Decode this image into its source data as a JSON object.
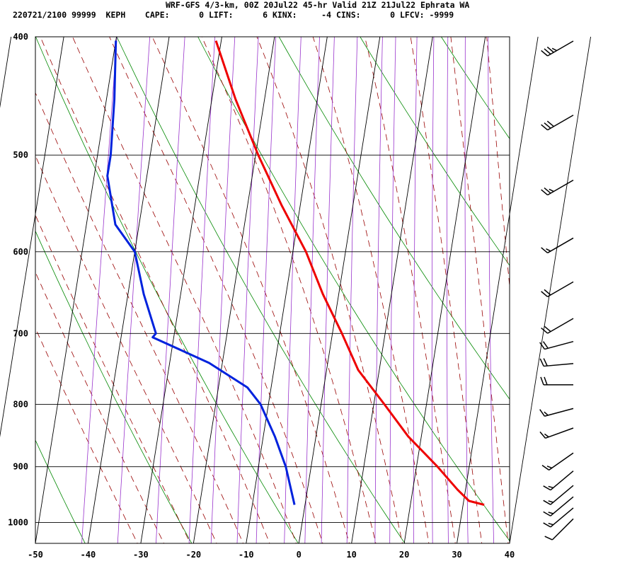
{
  "header": {
    "line1": "WRF-GFS 4/3-km, 00Z 20Jul22 45-hr Valid 21Z 21Jul22 Ephrata WA",
    "line2": "220721/2100 99999  KEPH    CAPE:      0 LIFT:      6 KINX:     -4 CINS:      0 LFCV: -9999"
  },
  "chart_data": {
    "type": "line",
    "subtype": "skew-T log-P sounding",
    "x_axis": {
      "unit": "°C",
      "range": [
        -50,
        40
      ],
      "ticks": [
        -50,
        -40,
        -30,
        -20,
        -10,
        0,
        10,
        20,
        30,
        40
      ]
    },
    "y_axis": {
      "unit": "hPa",
      "scale": "log",
      "range": [
        1040,
        400
      ],
      "ticks": [
        400,
        500,
        600,
        700,
        800,
        900,
        1000
      ]
    },
    "grid": true,
    "series": [
      {
        "kind": "temperature",
        "color": "#ee0000",
        "points": [
          {
            "p": 403,
            "t": -31
          },
          {
            "p": 450,
            "t": -25.5
          },
          {
            "p": 500,
            "t": -19.5
          },
          {
            "p": 550,
            "t": -13.5
          },
          {
            "p": 600,
            "t": -7.5
          },
          {
            "p": 650,
            "t": -3
          },
          {
            "p": 700,
            "t": 1.8
          },
          {
            "p": 750,
            "t": 6
          },
          {
            "p": 800,
            "t": 12
          },
          {
            "p": 850,
            "t": 17.5
          },
          {
            "p": 900,
            "t": 24
          },
          {
            "p": 940,
            "t": 28.5
          },
          {
            "p": 960,
            "t": 31
          },
          {
            "p": 967,
            "t": 34
          }
        ]
      },
      {
        "kind": "dewpoint",
        "color": "#0022dd",
        "points": [
          {
            "p": 403,
            "t": -50
          },
          {
            "p": 450,
            "t": -48.5
          },
          {
            "p": 500,
            "t": -47.5
          },
          {
            "p": 520,
            "t": -47.5
          },
          {
            "p": 570,
            "t": -44.5
          },
          {
            "p": 600,
            "t": -40
          },
          {
            "p": 650,
            "t": -37
          },
          {
            "p": 700,
            "t": -33.5
          },
          {
            "p": 705,
            "t": -34
          },
          {
            "p": 740,
            "t": -22.5
          },
          {
            "p": 775,
            "t": -14.5
          },
          {
            "p": 800,
            "t": -11.5
          },
          {
            "p": 850,
            "t": -7.8
          },
          {
            "p": 900,
            "t": -4.8
          },
          {
            "p": 967,
            "t": -2
          }
        ]
      }
    ],
    "background_lines": {
      "isotherm_color": "#000000",
      "dry_adiabat_color": "#008800",
      "saturated_adiabat_color": "#990000",
      "mixing_ratio_color": "#9933cc"
    },
    "wind_barbs": [
      {
        "p": 400,
        "dir": 240,
        "kt": 35
      },
      {
        "p": 460,
        "dir": 240,
        "kt": 30
      },
      {
        "p": 520,
        "dir": 240,
        "kt": 25
      },
      {
        "p": 580,
        "dir": 240,
        "kt": 15
      },
      {
        "p": 630,
        "dir": 240,
        "kt": 20
      },
      {
        "p": 675,
        "dir": 240,
        "kt": 20
      },
      {
        "p": 705,
        "dir": 255,
        "kt": 20
      },
      {
        "p": 735,
        "dir": 265,
        "kt": 20
      },
      {
        "p": 765,
        "dir": 270,
        "kt": 20
      },
      {
        "p": 800,
        "dir": 255,
        "kt": 15
      },
      {
        "p": 830,
        "dir": 250,
        "kt": 15
      },
      {
        "p": 870,
        "dir": 235,
        "kt": 15
      },
      {
        "p": 900,
        "dir": 230,
        "kt": 15
      },
      {
        "p": 925,
        "dir": 230,
        "kt": 15
      },
      {
        "p": 945,
        "dir": 230,
        "kt": 15
      },
      {
        "p": 965,
        "dir": 230,
        "kt": 15
      },
      {
        "p": 985,
        "dir": 225,
        "kt": 10
      }
    ]
  }
}
